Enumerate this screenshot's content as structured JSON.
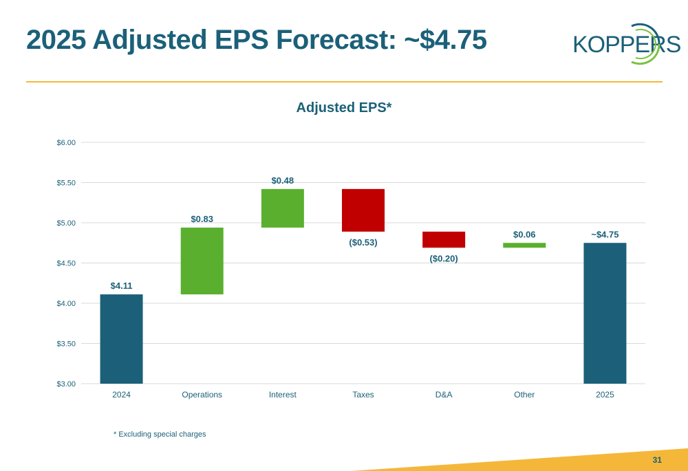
{
  "slide": {
    "title": "2025 Adjusted EPS Forecast: ~$4.75",
    "footnote": "* Excluding special charges",
    "page_number": "31"
  },
  "logo": {
    "text": "KOPPERS",
    "icon": "koppers-arc-icon"
  },
  "colors": {
    "title": "#1b6078",
    "total_bar": "#1b6078",
    "increase": "#5ab02e",
    "decrease": "#c00000",
    "accent": "#f5b73a"
  },
  "chart_data": {
    "type": "bar",
    "subtype": "waterfall",
    "title": "Adjusted EPS*",
    "categories": [
      "2024",
      "Operations",
      "Interest",
      "Taxes",
      "D&A",
      "Other",
      "2025"
    ],
    "values": [
      4.11,
      0.83,
      0.48,
      -0.53,
      -0.2,
      0.06,
      4.75
    ],
    "kinds": [
      "total",
      "increase",
      "increase",
      "decrease",
      "decrease",
      "increase",
      "total"
    ],
    "data_labels": [
      "$4.11",
      "$0.83",
      "$0.48",
      "($0.53)",
      "($0.20)",
      "$0.06",
      "~$4.75"
    ],
    "y_ticks": [
      "$3.00",
      "$3.50",
      "$4.00",
      "$4.50",
      "$5.00",
      "$5.50",
      "$6.00"
    ],
    "y_tick_values": [
      3.0,
      3.5,
      4.0,
      4.5,
      5.0,
      5.5,
      6.0
    ],
    "ylim": [
      3.0,
      6.0
    ],
    "xlabel": "",
    "ylabel": "",
    "grid": true,
    "legend": "none"
  }
}
